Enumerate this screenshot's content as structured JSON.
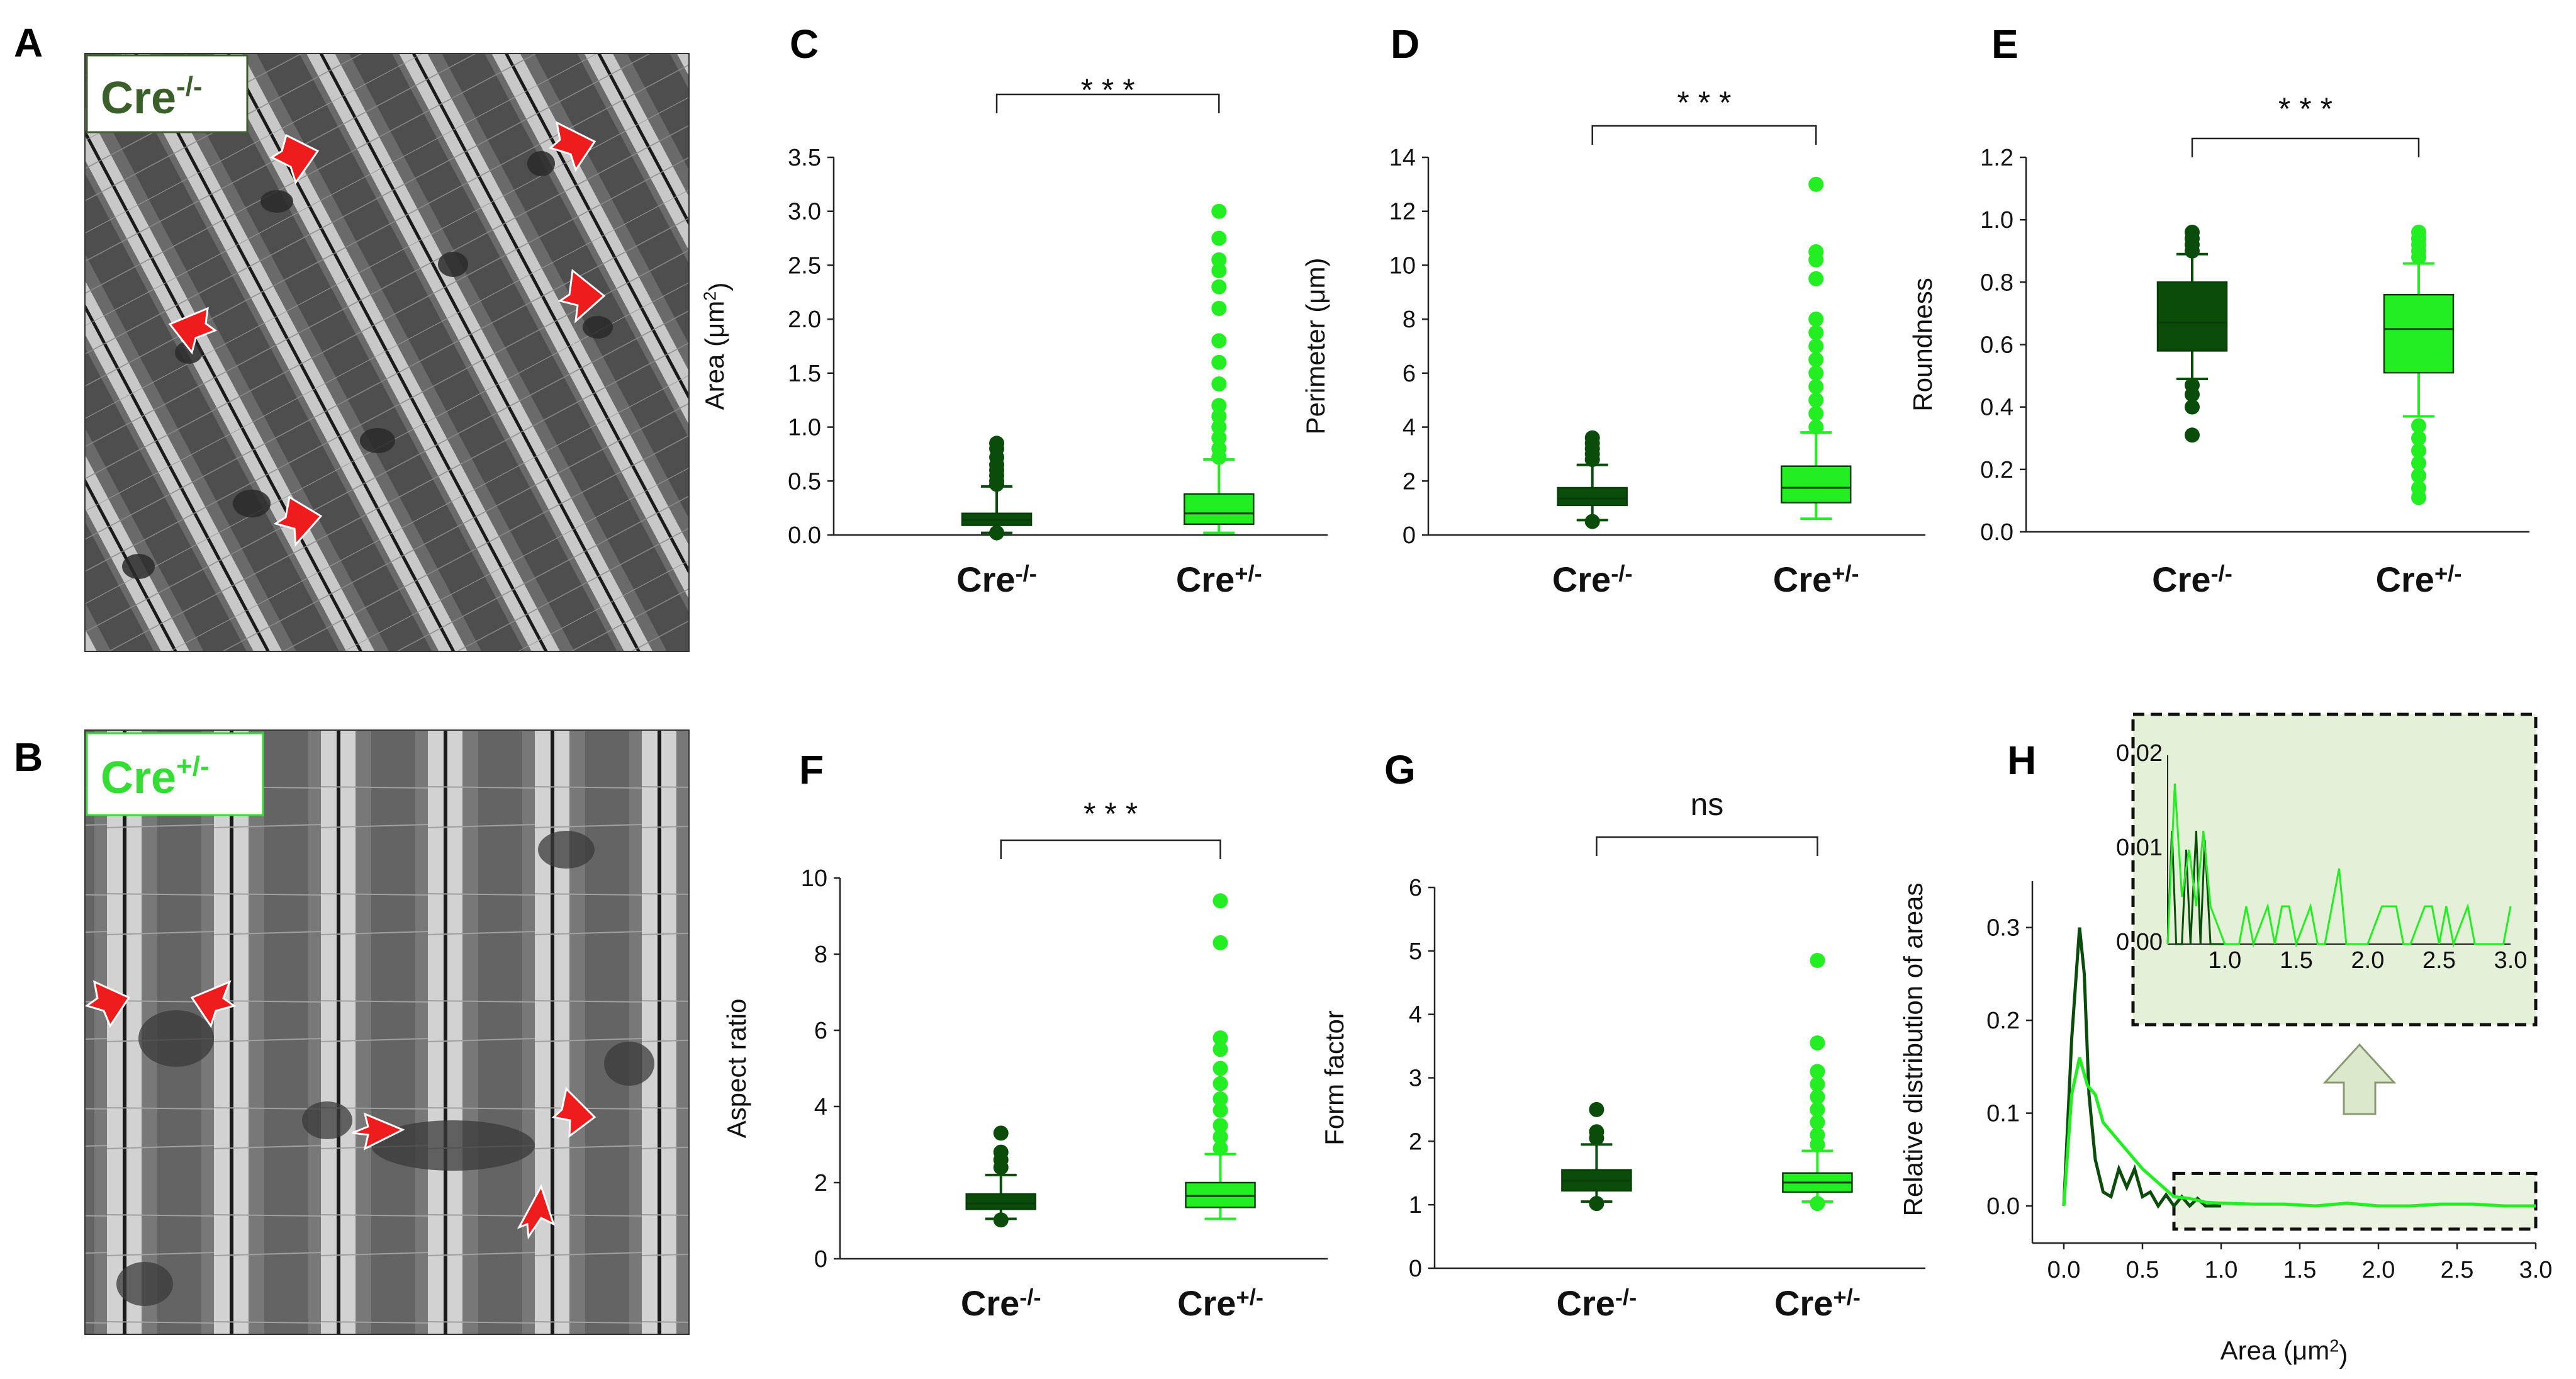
{
  "figure": {
    "panel_labels": [
      "A",
      "B",
      "C",
      "D",
      "E",
      "F",
      "G",
      "H"
    ],
    "em_labels": {
      "A": {
        "base": "Cre",
        "sup": "-/-",
        "color": "#3a5f2a"
      },
      "B": {
        "base": "Cre",
        "sup": "+/-",
        "color": "#33dd33"
      }
    },
    "colors": {
      "cre_minus": "#0a4d0a",
      "cre_plus": "#22ee22",
      "arrow": "#ee1c1c"
    }
  },
  "chart_data": [
    {
      "panel": "C",
      "type": "box",
      "ylabel": {
        "base": "Area  (μm",
        "sup": "2",
        "tail": ")"
      },
      "ylim": [
        0,
        3.5
      ],
      "ticks": [
        "0.0",
        "0.5",
        "1.0",
        "1.5",
        "2.0",
        "2.5",
        "3.0",
        "3.5"
      ],
      "categories": [
        {
          "base": "Cre",
          "sup": "-/-"
        },
        {
          "base": "Cre",
          "sup": "+/-"
        }
      ],
      "significance": "* * *",
      "series": [
        {
          "name": "Cre-/-",
          "q1": 0.09,
          "median": 0.14,
          "q3": 0.2,
          "wlo": 0.02,
          "whi": 0.45,
          "outliers": [
            0.02,
            0.47,
            0.5,
            0.55,
            0.6,
            0.65,
            0.72,
            0.8,
            0.85
          ]
        },
        {
          "name": "Cre+/-",
          "q1": 0.1,
          "median": 0.2,
          "q3": 0.38,
          "wlo": 0.02,
          "whi": 0.7,
          "outliers": [
            0.72,
            0.8,
            0.9,
            1.0,
            1.1,
            1.2,
            1.4,
            1.6,
            1.8,
            2.1,
            2.3,
            2.45,
            2.55,
            2.75,
            3.0
          ]
        }
      ]
    },
    {
      "panel": "D",
      "type": "box",
      "ylabel": {
        "base": "Perimeter (μm)",
        "sup": "",
        "tail": ""
      },
      "ylim": [
        0,
        14
      ],
      "ticks": [
        "0",
        "2",
        "4",
        "6",
        "8",
        "10",
        "12",
        "14"
      ],
      "categories": [
        {
          "base": "Cre",
          "sup": "-/-"
        },
        {
          "base": "Cre",
          "sup": "+/-"
        }
      ],
      "significance": "* * *",
      "series": [
        {
          "name": "Cre-/-",
          "q1": 1.1,
          "median": 1.35,
          "q3": 1.75,
          "wlo": 0.55,
          "whi": 2.6,
          "outliers": [
            0.5,
            2.8,
            3.0,
            3.2,
            3.4,
            3.6
          ]
        },
        {
          "name": "Cre+/-",
          "q1": 1.2,
          "median": 1.75,
          "q3": 2.55,
          "wlo": 0.6,
          "whi": 3.8,
          "outliers": [
            4.0,
            4.5,
            5.0,
            5.5,
            6.0,
            6.5,
            7.0,
            7.5,
            8.0,
            9.5,
            10.2,
            10.5,
            13.0
          ]
        }
      ]
    },
    {
      "panel": "E",
      "type": "box",
      "ylabel": {
        "base": "Roundness",
        "sup": "",
        "tail": ""
      },
      "ylim": [
        0,
        1.2
      ],
      "ticks": [
        "0.0",
        "0.2",
        "0.4",
        "0.6",
        "0.8",
        "1.0",
        "1.2"
      ],
      "categories": [
        {
          "base": "Cre",
          "sup": "-/-"
        },
        {
          "base": "Cre",
          "sup": "+/-"
        }
      ],
      "significance": "* * *",
      "series": [
        {
          "name": "Cre-/-",
          "q1": 0.58,
          "median": 0.67,
          "q3": 0.8,
          "wlo": 0.49,
          "whi": 0.89,
          "outliers": [
            0.31,
            0.4,
            0.44,
            0.47,
            0.9,
            0.92,
            0.94,
            0.96
          ]
        },
        {
          "name": "Cre+/-",
          "q1": 0.51,
          "median": 0.65,
          "q3": 0.76,
          "wlo": 0.37,
          "whi": 0.86,
          "outliers": [
            0.11,
            0.14,
            0.18,
            0.22,
            0.26,
            0.3,
            0.34,
            0.88,
            0.9,
            0.92,
            0.94,
            0.96
          ]
        }
      ]
    },
    {
      "panel": "F",
      "type": "box",
      "ylabel": {
        "base": "Aspect ratio",
        "sup": "",
        "tail": ""
      },
      "ylim": [
        0,
        10
      ],
      "ticks": [
        "0",
        "2",
        "4",
        "6",
        "8",
        "10"
      ],
      "categories": [
        {
          "base": "Cre",
          "sup": "-/-"
        },
        {
          "base": "Cre",
          "sup": "+/-"
        }
      ],
      "significance": "* * *",
      "series": [
        {
          "name": "Cre-/-",
          "q1": 1.3,
          "median": 1.45,
          "q3": 1.7,
          "wlo": 1.05,
          "whi": 2.2,
          "outliers": [
            1.02,
            2.4,
            2.6,
            2.8,
            3.3
          ]
        },
        {
          "name": "Cre+/-",
          "q1": 1.35,
          "median": 1.65,
          "q3": 2.0,
          "wlo": 1.05,
          "whi": 2.75,
          "outliers": [
            2.9,
            3.2,
            3.5,
            3.9,
            4.2,
            4.6,
            5.0,
            5.5,
            5.8,
            8.3,
            9.4
          ]
        }
      ]
    },
    {
      "panel": "G",
      "type": "box",
      "ylabel": {
        "base": "Form factor",
        "sup": "",
        "tail": ""
      },
      "ylim": [
        0,
        6
      ],
      "ticks": [
        "0",
        "1",
        "2",
        "3",
        "4",
        "5",
        "6"
      ],
      "categories": [
        {
          "base": "Cre",
          "sup": "-/-"
        },
        {
          "base": "Cre",
          "sup": "+/-"
        }
      ],
      "significance": "ns",
      "series": [
        {
          "name": "Cre-/-",
          "q1": 1.22,
          "median": 1.38,
          "q3": 1.55,
          "wlo": 1.05,
          "whi": 1.95,
          "outliers": [
            1.02,
            2.05,
            2.15,
            2.5
          ]
        },
        {
          "name": "Cre+/-",
          "q1": 1.2,
          "median": 1.35,
          "q3": 1.5,
          "wlo": 1.05,
          "whi": 1.85,
          "outliers": [
            1.02,
            1.95,
            2.1,
            2.3,
            2.5,
            2.7,
            2.9,
            3.1,
            3.55,
            4.85
          ]
        }
      ]
    },
    {
      "panel": "H",
      "type": "line",
      "ylabel": "Relative distribution of areas",
      "xlabel": {
        "base": "Area (μm",
        "sup": "2",
        "tail": ")"
      },
      "xlim": [
        -0.2,
        3.0
      ],
      "ylim": [
        -0.04,
        0.35
      ],
      "xticks": [
        "0.0",
        "0.5",
        "1.0",
        "1.5",
        "2.0",
        "2.5",
        "3.0"
      ],
      "yticks": [
        "0.0",
        "0.1",
        "0.2",
        "0.3"
      ],
      "series": [
        {
          "name": "Cre-/-",
          "x": [
            0,
            0.05,
            0.1,
            0.13,
            0.16,
            0.2,
            0.25,
            0.3,
            0.35,
            0.4,
            0.45,
            0.5,
            0.55,
            0.6,
            0.65,
            0.7,
            0.75,
            0.8,
            0.85,
            0.9,
            0.95,
            1.0
          ],
          "y": [
            0,
            0.18,
            0.3,
            0.25,
            0.12,
            0.05,
            0.015,
            0.01,
            0.04,
            0.02,
            0.04,
            0.01,
            0.015,
            0.0,
            0.012,
            0.0,
            0.01,
            0.0,
            0.008,
            0.0,
            0.0,
            0.0
          ]
        },
        {
          "name": "Cre+/-",
          "x": [
            0,
            0.05,
            0.1,
            0.15,
            0.2,
            0.25,
            0.3,
            0.4,
            0.5,
            0.6,
            0.7,
            0.8,
            0.9,
            1.0,
            1.2,
            1.4,
            1.6,
            1.8,
            2.0,
            2.2,
            2.4,
            2.6,
            2.8,
            3.0
          ],
          "y": [
            0,
            0.12,
            0.16,
            0.13,
            0.12,
            0.09,
            0.08,
            0.06,
            0.04,
            0.025,
            0.01,
            0.008,
            0.004,
            0.003,
            0.002,
            0.002,
            0.0,
            0.003,
            0.0,
            0.0,
            0.002,
            0.002,
            0.0,
            0.0
          ]
        }
      ],
      "inset": {
        "xlim": [
          0.6,
          3.0
        ],
        "ylim": [
          0,
          0.02
        ],
        "xticks": [
          "1.0",
          "1.5",
          "2.0",
          "2.5",
          "3.0"
        ],
        "yticks": [
          "0.00",
          "0.01",
          "0.02"
        ],
        "series": [
          {
            "name": "Cre-/-",
            "x": [
              0.6,
              0.63,
              0.66,
              0.7,
              0.73,
              0.76,
              0.8,
              0.83,
              0.86,
              0.9,
              0.93,
              0.97,
              1.0
            ],
            "y": [
              0.0,
              0.012,
              0.0,
              0.0,
              0.01,
              0.0,
              0.012,
              0.0,
              0.011,
              0.0,
              0.0,
              0.0,
              0.0
            ]
          },
          {
            "name": "Cre+/-",
            "x": [
              0.6,
              0.65,
              0.7,
              0.75,
              0.8,
              0.85,
              0.9,
              1.0,
              1.1,
              1.15,
              1.2,
              1.3,
              1.35,
              1.4,
              1.45,
              1.5,
              1.6,
              1.65,
              1.7,
              1.8,
              1.85,
              1.9,
              2.0,
              2.1,
              2.2,
              2.25,
              2.3,
              2.4,
              2.45,
              2.5,
              2.55,
              2.6,
              2.7,
              2.75,
              2.8,
              2.9,
              2.95,
              3.0
            ],
            "y": [
              0.0,
              0.017,
              0.005,
              0.01,
              0.004,
              0.012,
              0.004,
              0.0,
              0.0,
              0.004,
              0.0,
              0.004,
              0.0,
              0.004,
              0.004,
              0.0,
              0.004,
              0.0,
              0.0,
              0.008,
              0.0,
              0.0,
              0.0,
              0.004,
              0.004,
              0.0,
              0.0,
              0.004,
              0.004,
              0.0,
              0.004,
              0.0,
              0.004,
              0.0,
              0.0,
              0.0,
              0.0,
              0.004
            ]
          }
        ]
      }
    }
  ]
}
